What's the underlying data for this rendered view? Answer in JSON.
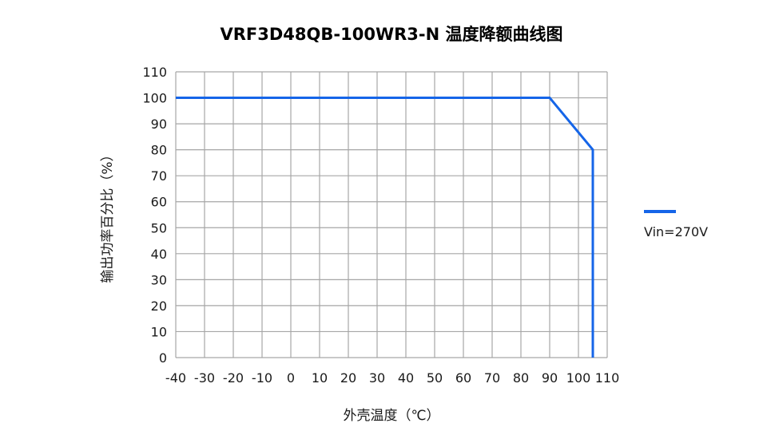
{
  "chart_data": {
    "type": "line",
    "title": "VRF3D48QB-100WR3-N 温度降额曲线图",
    "xlabel": "外壳温度（℃）",
    "ylabel": "输出功率百分比（%）",
    "xlim": [
      -40,
      110
    ],
    "ylim": [
      0,
      110
    ],
    "x_ticks": [
      -40,
      -30,
      -20,
      -10,
      0,
      10,
      20,
      30,
      40,
      50,
      60,
      70,
      80,
      90,
      100,
      110
    ],
    "y_ticks": [
      0,
      10,
      20,
      30,
      40,
      50,
      60,
      70,
      80,
      90,
      100,
      110
    ],
    "grid": true,
    "legend_position": "right",
    "series": [
      {
        "name": "Vin=270V",
        "color": "#1565e8",
        "points": [
          [
            -40,
            100
          ],
          [
            90,
            100
          ],
          [
            105,
            80
          ],
          [
            105,
            0
          ]
        ]
      }
    ]
  }
}
